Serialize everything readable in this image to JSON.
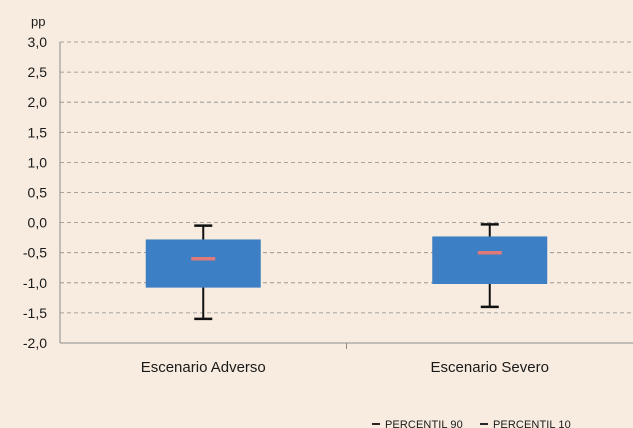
{
  "chart_data": {
    "type": "boxplot",
    "title": "",
    "ylabel": "pp",
    "xlabel": "",
    "ylim": [
      -2.0,
      3.0
    ],
    "yticks": [
      "3,0",
      "2,5",
      "2,0",
      "1,5",
      "1,0",
      "0,5",
      "0,0",
      "-0,5",
      "-1,0",
      "-1,5",
      "-2,0"
    ],
    "ytick_values": [
      3.0,
      2.5,
      2.0,
      1.5,
      1.0,
      0.5,
      0.0,
      -0.5,
      -1.0,
      -1.5,
      -2.0
    ],
    "grid": true,
    "categories": [
      "Escenario Adverso",
      "Escenario Severo"
    ],
    "boxes": [
      {
        "category": "Escenario Adverso",
        "whisker_high": -0.05,
        "q3": -0.28,
        "median": -0.6,
        "q1": -1.08,
        "whisker_low": -1.6
      },
      {
        "category": "Escenario Severo",
        "whisker_high": -0.03,
        "q3": -0.23,
        "median": -0.5,
        "q1": -1.02,
        "whisker_low": -1.4
      }
    ],
    "colors": {
      "box": "#3c7fc4",
      "median": "#e07a7a",
      "whisker": "#111111",
      "background": "#f7ecdf"
    },
    "legend": {
      "placement": "bottom-right",
      "items": [
        {
          "label": "PERCENTIL 90",
          "color": "#111111"
        },
        {
          "label": "PERCENTIL 10",
          "color": "#111111"
        }
      ]
    }
  }
}
